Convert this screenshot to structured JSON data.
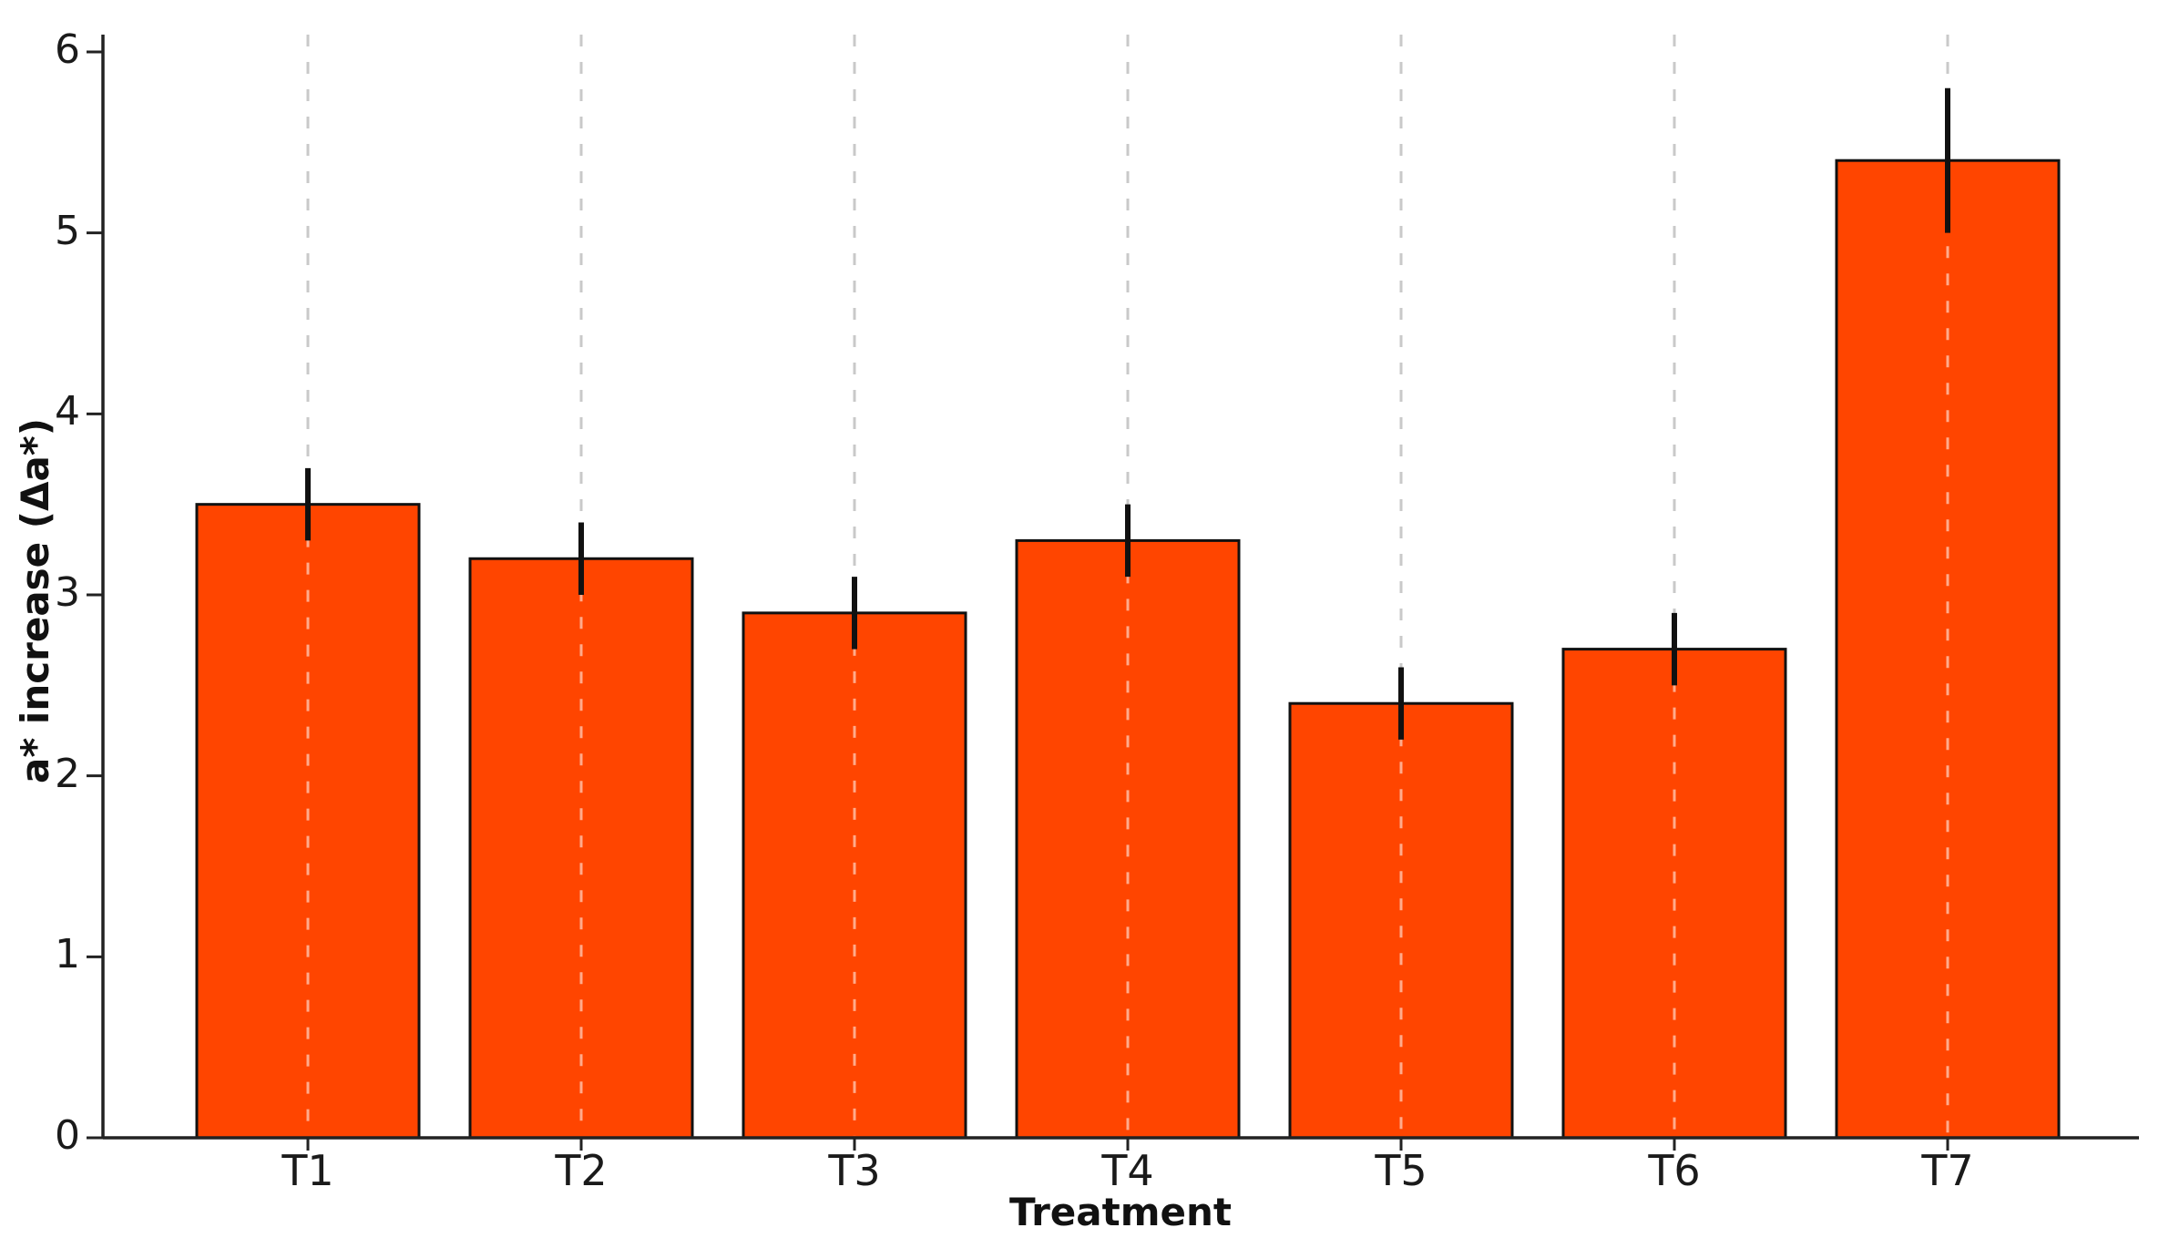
{
  "chart_data": {
    "type": "bar",
    "categories": [
      "T1",
      "T2",
      "T3",
      "T4",
      "T5",
      "T6",
      "T7"
    ],
    "values": [
      3.5,
      3.2,
      2.9,
      3.3,
      2.4,
      2.7,
      5.4
    ],
    "errors": [
      0.2,
      0.2,
      0.2,
      0.2,
      0.2,
      0.2,
      0.4
    ],
    "error_low": [
      3.3,
      3.0,
      2.7,
      3.1,
      2.2,
      2.5,
      5.0
    ],
    "error_high": [
      3.7,
      3.4,
      3.1,
      3.5,
      2.6,
      2.9,
      5.8
    ],
    "title": "",
    "xlabel": "Treatment",
    "ylabel": "a* increase (Δa*)",
    "ylim": [
      0,
      6
    ],
    "yticks": [
      0,
      1,
      2,
      3,
      4,
      5,
      6
    ],
    "grid": "vertical dashed gridline at each category center",
    "legend": "none",
    "colors": {
      "bar_fill": "#FF4500",
      "bar_edge": "#111111",
      "error_bar": "#111111",
      "axis": "#222222",
      "tick_text": "#1a1a1a",
      "gridline_above_bar": "#c9c9c9",
      "gridline_over_bar": "rgba(255,255,255,0.55)"
    }
  }
}
